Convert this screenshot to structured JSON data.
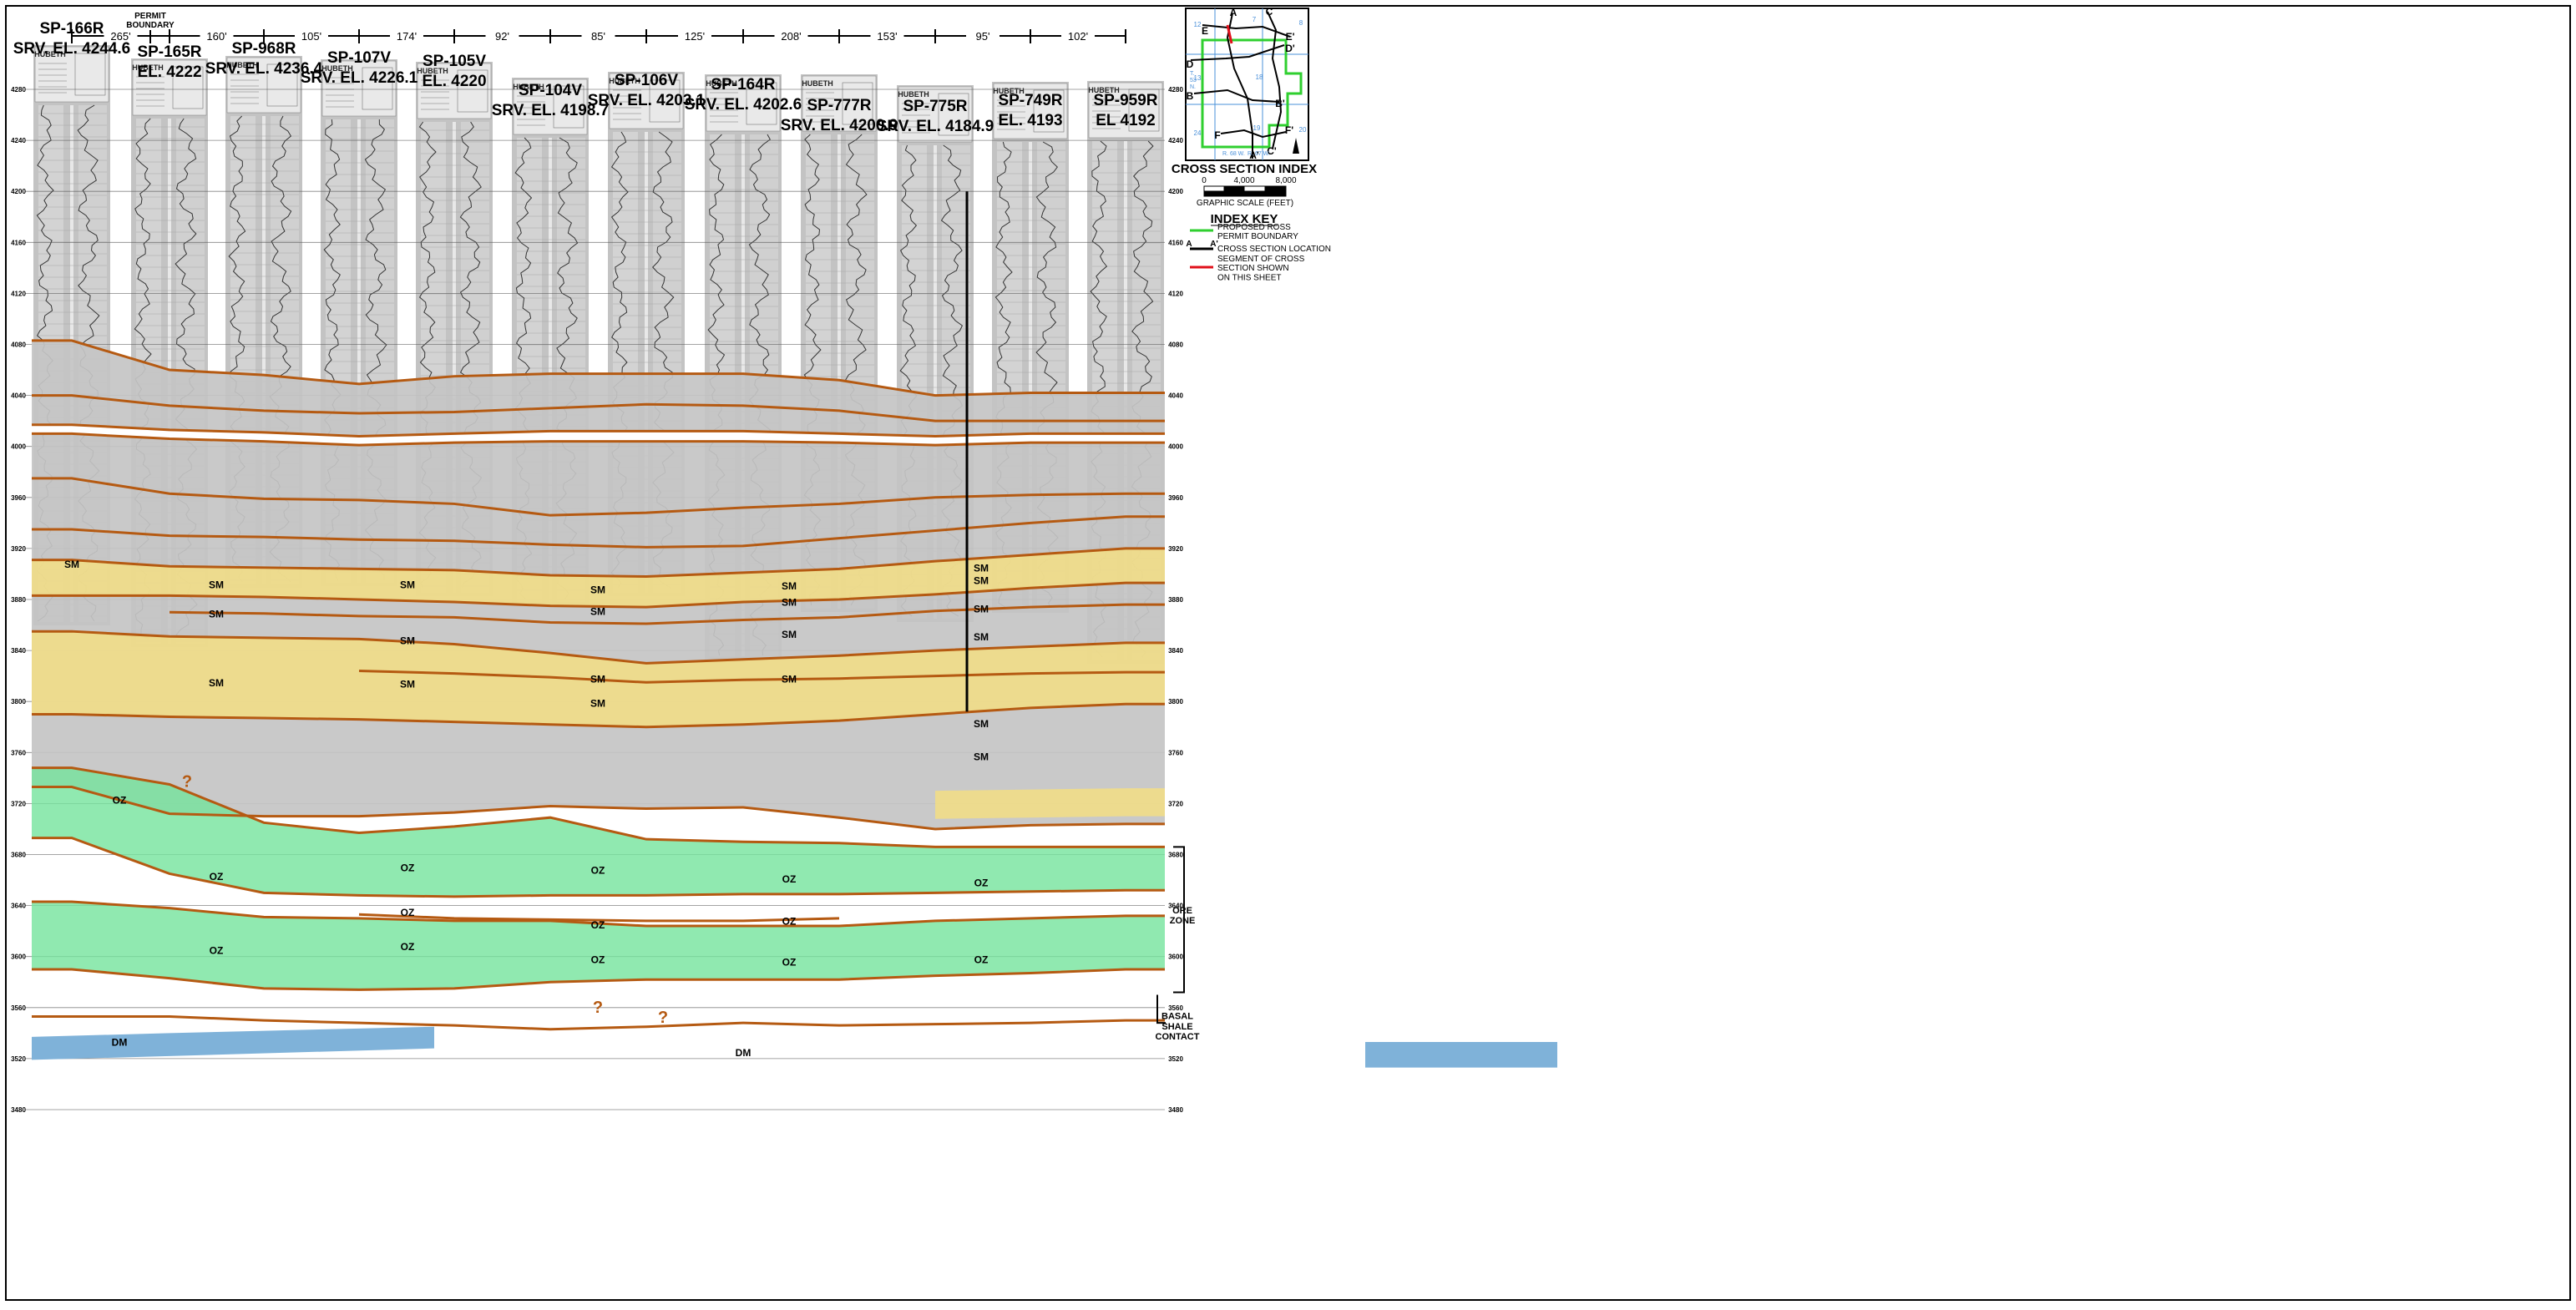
{
  "permit_boundary_label": "PERMIT\nBOUNDARY",
  "spacings": [
    "265'",
    "160'",
    "105'",
    "174'",
    "92'",
    "85'",
    "125'",
    "208'",
    "153'",
    "95'",
    "102'"
  ],
  "elevation_ticks": [
    "4280",
    "4240",
    "4200",
    "4160",
    "4120",
    "4080",
    "4040",
    "4000",
    "3960",
    "3920",
    "3880",
    "3840",
    "3800",
    "3760",
    "3720",
    "3680",
    "3640",
    "3600",
    "3560",
    "3520",
    "3480"
  ],
  "wells": [
    {
      "name": "SP-166R",
      "elev": "SRV. EL. 4244.6"
    },
    {
      "name": "SP-165R",
      "elev": "EL. 4222"
    },
    {
      "name": "SP-968R",
      "elev": "SRV. EL. 4236.4"
    },
    {
      "name": "SP-107V",
      "elev": "SRV. EL. 4226.1"
    },
    {
      "name": "SP-105V",
      "elev": "EL. 4220"
    },
    {
      "name": "SP-104V",
      "elev": "SRV. EL. 4198.7"
    },
    {
      "name": "SP-106V",
      "elev": "SRV. EL. 4203.1"
    },
    {
      "name": "SP-164R",
      "elev": "SRV. EL. 4202.6"
    },
    {
      "name": "SP-777R",
      "elev": "SRV. EL. 4200.9"
    },
    {
      "name": "SP-775R",
      "elev": "SRV. EL. 4184.9"
    },
    {
      "name": "SP-749R",
      "elev": "EL. 4193"
    },
    {
      "name": "SP-959R",
      "elev": "EL 4192"
    }
  ],
  "header_logo_text": "HUBETH",
  "unit_labels": {
    "sm": "SM",
    "oz": "OZ",
    "dm": "DM",
    "question": "?"
  },
  "annotations": {
    "ore_zone": "ORE\nZONE",
    "basal_shale": "BASAL\nSHALE\nCONTACT"
  },
  "index_map": {
    "title": "CROSS SECTION INDEX",
    "scale_ticks": [
      "0",
      "4,000",
      "8,000"
    ],
    "scale_caption": "GRAPHIC SCALE (FEET)",
    "point_labels": [
      "A",
      "C",
      "E",
      "E'",
      "D",
      "D'",
      "B",
      "B'",
      "F",
      "F'",
      "A'",
      "C'"
    ],
    "section_numbers": [
      "12",
      "7",
      "8",
      "13",
      "18",
      "24",
      "19",
      "20"
    ],
    "township_labels": [
      "T.",
      "53",
      "N.",
      "R. 68 W.",
      "R. 67 W."
    ]
  },
  "index_key": {
    "title": "INDEX KEY",
    "items": [
      {
        "symbol": "green-line",
        "label": "PROPOSED ROSS\nPERMIT BOUNDARY"
      },
      {
        "symbol": "black-line",
        "start": "A",
        "end": "A'",
        "label": "CROSS SECTION LOCATION"
      },
      {
        "symbol": "red-line",
        "label": "SEGMENT OF CROSS\nSECTION SHOWN\nON THIS SHEET"
      }
    ]
  },
  "colors": {
    "background": "#ffffff",
    "correlation_band": "#c4c4c4",
    "sand_sm": "#f3de84",
    "ore_zone": "#74e49c",
    "dm_unit": "#7fb2d9",
    "correlation_line": "#b55a12",
    "log_strip": "#b9b9b9",
    "permit_boundary": "#2fcf2f",
    "section_segment": "#e0101a",
    "section_line": "#000000",
    "grid_blue": "#4a90d9"
  }
}
